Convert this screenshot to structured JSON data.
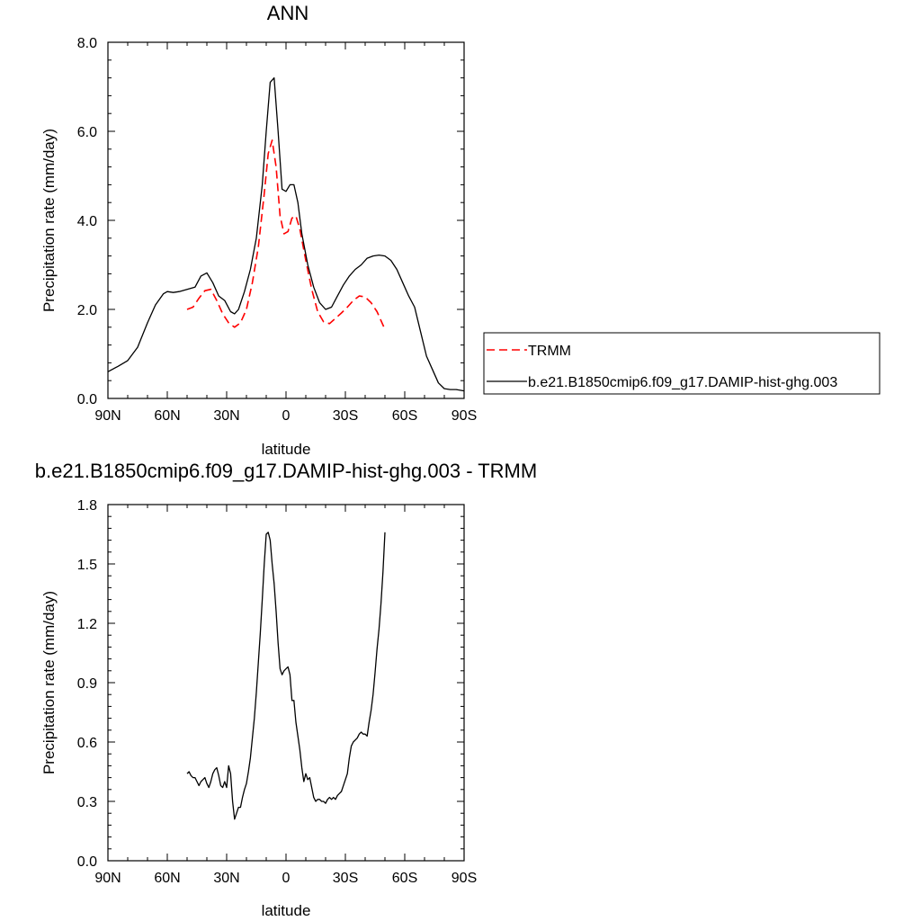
{
  "chart_data": [
    {
      "type": "line",
      "title": "ANN",
      "xlabel": "latitude",
      "ylabel": "Precipitation rate (mm/day)",
      "xlim": [
        -90,
        90
      ],
      "ylim": [
        0,
        8
      ],
      "xticks": [
        -90,
        -60,
        -30,
        0,
        30,
        60,
        90
      ],
      "xticklabels": [
        "90N",
        "60N",
        "30N",
        "0",
        "30S",
        "60S",
        "90S"
      ],
      "yticks": [
        0,
        2,
        4,
        6,
        8
      ],
      "yticklabels": [
        "0.0",
        "2.0",
        "4.0",
        "6.0",
        "8.0"
      ],
      "grid": false,
      "legend_position": "right",
      "series": [
        {
          "name": "TRMM",
          "color": "#ff0000",
          "dash": "dashed",
          "x": [
            -50,
            -47,
            -44,
            -41,
            -38,
            -35,
            -32,
            -29,
            -26,
            -23,
            -20,
            -17,
            -14,
            -11,
            -9,
            -7,
            -5,
            -3,
            -1,
            1,
            3,
            5,
            7,
            10,
            13,
            16,
            19,
            22,
            25,
            28,
            31,
            34,
            37,
            40,
            43,
            46,
            50
          ],
          "y": [
            2.0,
            2.05,
            2.25,
            2.42,
            2.45,
            2.2,
            1.9,
            1.7,
            1.6,
            1.7,
            2.0,
            2.6,
            3.4,
            4.6,
            5.5,
            5.8,
            5.2,
            4.1,
            3.7,
            3.75,
            4.05,
            4.1,
            3.8,
            3.1,
            2.45,
            1.95,
            1.72,
            1.68,
            1.8,
            1.92,
            2.05,
            2.2,
            2.3,
            2.28,
            2.15,
            1.95,
            1.55
          ]
        },
        {
          "name": "b.e21.B1850cmip6.f09_g17.DAMIP-hist-ghg.003",
          "color": "#000000",
          "dash": "solid",
          "x": [
            -90,
            -85,
            -80,
            -75,
            -70,
            -66,
            -62,
            -60,
            -57,
            -54,
            -50,
            -46,
            -43,
            -40,
            -37,
            -34,
            -31,
            -28,
            -26,
            -24,
            -21,
            -18,
            -15,
            -12,
            -10,
            -8,
            -6,
            -4,
            -2,
            0,
            2,
            4,
            6,
            8,
            11,
            14,
            17,
            20,
            23,
            26,
            29,
            32,
            35,
            38,
            41,
            44,
            47,
            50,
            53,
            56,
            59,
            62,
            65,
            68,
            71,
            74,
            77,
            80,
            83,
            86,
            90
          ],
          "y": [
            0.6,
            0.72,
            0.85,
            1.15,
            1.7,
            2.1,
            2.35,
            2.4,
            2.38,
            2.4,
            2.45,
            2.5,
            2.75,
            2.82,
            2.6,
            2.3,
            2.2,
            1.95,
            1.9,
            2.0,
            2.4,
            2.9,
            3.6,
            4.8,
            6.0,
            7.1,
            7.2,
            6.0,
            4.7,
            4.65,
            4.8,
            4.8,
            4.4,
            3.7,
            3.0,
            2.5,
            2.15,
            2.0,
            2.05,
            2.3,
            2.55,
            2.75,
            2.9,
            3.0,
            3.15,
            3.2,
            3.22,
            3.2,
            3.1,
            2.9,
            2.6,
            2.3,
            2.05,
            1.5,
            0.95,
            0.65,
            0.35,
            0.22,
            0.2,
            0.2,
            0.17
          ]
        }
      ]
    },
    {
      "type": "line",
      "title": "b.e21.B1850cmip6.f09_g17.DAMIP-hist-ghg.003 - TRMM",
      "xlabel": "latitude",
      "ylabel": "Precipitation rate (mm/day)",
      "xlim": [
        -90,
        90
      ],
      "ylim": [
        0,
        1.8
      ],
      "xticks": [
        -90,
        -60,
        -30,
        0,
        30,
        60,
        90
      ],
      "xticklabels": [
        "90N",
        "60N",
        "30N",
        "0",
        "30S",
        "60S",
        "90S"
      ],
      "yticks": [
        0,
        0.3,
        0.6,
        0.9,
        1.2,
        1.5,
        1.8
      ],
      "yticklabels": [
        "0.0",
        "0.3",
        "0.6",
        "0.9",
        "1.2",
        "1.5",
        "1.8"
      ],
      "grid": false,
      "series": [
        {
          "color": "#000000",
          "dash": "solid",
          "x": [
            -50,
            -49,
            -48,
            -47,
            -46,
            -45,
            -44,
            -43,
            -42,
            -41,
            -40,
            -39,
            -38,
            -37,
            -36,
            -35,
            -34,
            -33,
            -32,
            -31,
            -30,
            -29,
            -28,
            -27,
            -26,
            -25,
            -24,
            -23,
            -22,
            -21,
            -20,
            -19,
            -18,
            -17,
            -16,
            -15,
            -14,
            -13,
            -12,
            -11,
            -10,
            -9,
            -8,
            -7,
            -6,
            -5,
            -4,
            -3,
            -2,
            -1,
            0,
            1,
            2,
            3,
            4,
            5,
            6,
            7,
            8,
            9,
            10,
            11,
            12,
            13,
            14,
            15,
            16,
            17,
            18,
            19,
            20,
            21,
            22,
            23,
            24,
            25,
            26,
            27,
            28,
            29,
            30,
            31,
            32,
            33,
            34,
            35,
            36,
            37,
            38,
            39,
            40,
            41,
            42,
            43,
            44,
            45,
            46,
            47,
            48,
            49,
            50
          ],
          "y": [
            0.44,
            0.45,
            0.43,
            0.42,
            0.42,
            0.4,
            0.38,
            0.4,
            0.41,
            0.42,
            0.39,
            0.37,
            0.4,
            0.44,
            0.46,
            0.47,
            0.43,
            0.38,
            0.37,
            0.4,
            0.37,
            0.48,
            0.44,
            0.3,
            0.21,
            0.24,
            0.27,
            0.27,
            0.32,
            0.36,
            0.39,
            0.45,
            0.52,
            0.62,
            0.72,
            0.85,
            1.0,
            1.15,
            1.32,
            1.5,
            1.65,
            1.66,
            1.62,
            1.5,
            1.4,
            1.26,
            1.1,
            0.97,
            0.94,
            0.96,
            0.97,
            0.98,
            0.94,
            0.81,
            0.81,
            0.7,
            0.63,
            0.56,
            0.47,
            0.4,
            0.44,
            0.41,
            0.42,
            0.37,
            0.32,
            0.3,
            0.31,
            0.31,
            0.3,
            0.3,
            0.29,
            0.31,
            0.32,
            0.31,
            0.32,
            0.31,
            0.33,
            0.34,
            0.35,
            0.38,
            0.41,
            0.44,
            0.52,
            0.58,
            0.6,
            0.61,
            0.62,
            0.64,
            0.65,
            0.64,
            0.64,
            0.63,
            0.7,
            0.76,
            0.84,
            0.95,
            1.07,
            1.17,
            1.3,
            1.46,
            1.66
          ]
        }
      ]
    }
  ]
}
